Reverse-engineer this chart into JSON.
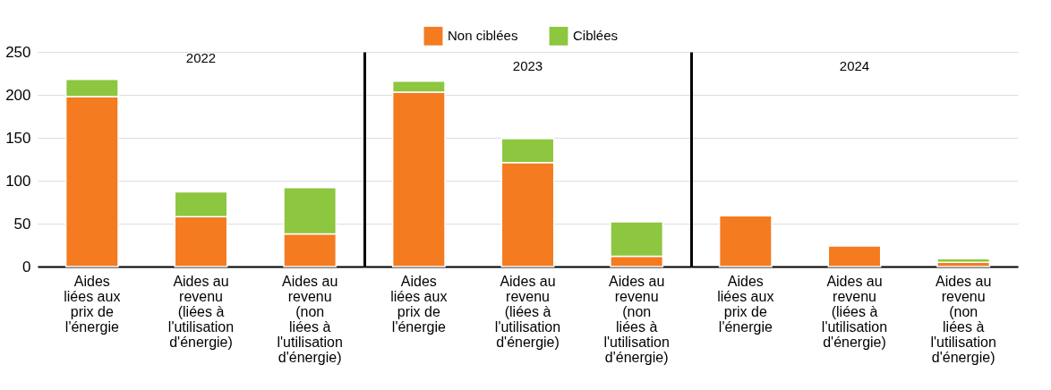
{
  "chart_data": [
    {
      "type": "bar",
      "title": "2022",
      "stacked": true,
      "legend": "top",
      "grid": "y",
      "ylim": [
        0,
        250
      ],
      "yticks": [
        0,
        50,
        100,
        150,
        200,
        250
      ],
      "categories": [
        "Aides liées aux prix de l'énergie",
        "Aides au revenu (liées à l'utilisation d'énergie)",
        "Aides au revenu (non liées à l'utilisation d'énergie)"
      ],
      "series": [
        {
          "name": "Non ciblées",
          "color": "#f47b20",
          "values": [
            198,
            58,
            38
          ]
        },
        {
          "name": "Ciblées",
          "color": "#8dc63f",
          "values": [
            20,
            29,
            54
          ]
        }
      ]
    },
    {
      "type": "bar",
      "title": "2023",
      "stacked": true,
      "legend": "top",
      "grid": "y",
      "tick_labels": "x",
      "ylim": [
        0,
        250
      ],
      "yticks": [
        0,
        50,
        100,
        150,
        200,
        250
      ],
      "categories": [
        "Aides liées aux prix de l'énergie",
        "Aides au revenu (liées à l'utilisation d'énergie)",
        "Aides au revenu (non liées à l'utilisation d'énergie)"
      ],
      "series": [
        {
          "name": "Non ciblées",
          "color": "#f47b20",
          "values": [
            203,
            121,
            12
          ]
        },
        {
          "name": "Ciblées",
          "color": "#8dc63f",
          "values": [
            13,
            28,
            40
          ]
        }
      ]
    },
    {
      "type": "bar",
      "title": "2024",
      "stacked": true,
      "legend": "top",
      "grid": "y",
      "tick_labels": "x",
      "ylim": [
        0,
        250
      ],
      "yticks": [
        0,
        50,
        100,
        150,
        200,
        250
      ],
      "categories": [
        "Aides liées aux prix de l'énergie",
        "Aides au revenu (liées à l'utilisation d'énergie)",
        "Aides au revenu (non liées à l'utilisation d'énergie)"
      ],
      "series": [
        {
          "name": "Non ciblées",
          "color": "#f47b20",
          "values": [
            59,
            24,
            5
          ]
        },
        {
          "name": "Ciblées",
          "color": "#8dc63f",
          "values": [
            0,
            0,
            4
          ]
        }
      ]
    }
  ]
}
